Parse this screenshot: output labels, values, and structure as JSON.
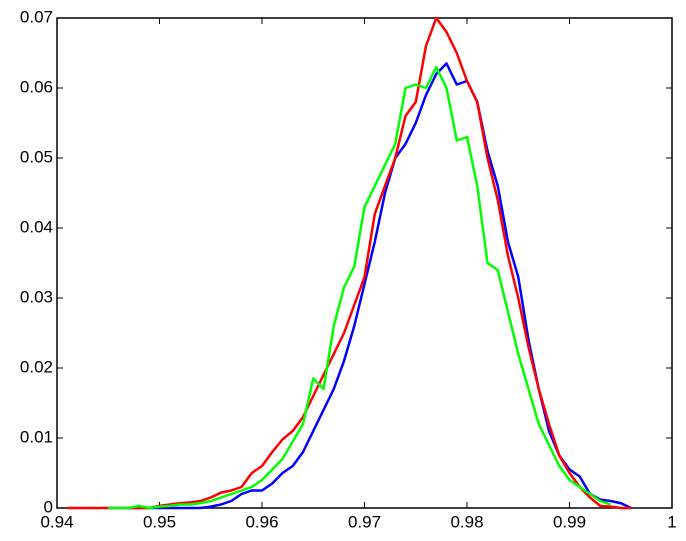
{
  "chart_data": {
    "type": "line",
    "x": [
      0.941,
      0.942,
      0.943,
      0.944,
      0.945,
      0.946,
      0.947,
      0.948,
      0.949,
      0.95,
      0.951,
      0.952,
      0.953,
      0.954,
      0.955,
      0.956,
      0.957,
      0.958,
      0.959,
      0.96,
      0.961,
      0.962,
      0.963,
      0.964,
      0.965,
      0.966,
      0.967,
      0.968,
      0.969,
      0.97,
      0.971,
      0.972,
      0.973,
      0.974,
      0.975,
      0.976,
      0.977,
      0.978,
      0.979,
      0.98,
      0.981,
      0.982,
      0.983,
      0.984,
      0.985,
      0.986,
      0.987,
      0.988,
      0.989,
      0.99,
      0.991,
      0.992,
      0.993,
      0.994,
      0.995,
      0.996
    ],
    "series": [
      {
        "color": "#0000ff",
        "values": [
          null,
          null,
          null,
          null,
          0,
          0,
          0,
          0,
          0,
          0,
          0,
          0,
          0,
          0,
          0.0002,
          0.0005,
          0.001,
          0.002,
          0.0025,
          0.0025,
          0.0035,
          0.005,
          0.006,
          0.008,
          0.011,
          0.014,
          0.017,
          0.021,
          0.026,
          0.032,
          0.038,
          0.045,
          0.05,
          0.052,
          0.055,
          0.059,
          0.062,
          0.0635,
          0.0605,
          0.061,
          0.058,
          0.051,
          0.046,
          0.038,
          0.033,
          0.024,
          0.017,
          0.011,
          0.0075,
          0.0055,
          0.0045,
          0.002,
          0.0012,
          0.001,
          0.0007,
          0
        ]
      },
      {
        "color": "#ff0000",
        "values": [
          0,
          0,
          0,
          0,
          0,
          0,
          0,
          0,
          0,
          0.0003,
          0.0005,
          0.0007,
          0.0008,
          0.001,
          0.0015,
          0.0022,
          0.0025,
          0.003,
          0.005,
          0.006,
          0.008,
          0.0098,
          0.011,
          0.013,
          0.016,
          0.019,
          0.022,
          0.025,
          0.029,
          0.033,
          0.042,
          0.046,
          0.05,
          0.056,
          0.058,
          0.066,
          0.07,
          0.068,
          0.065,
          0.061,
          0.058,
          0.05,
          0.044,
          0.036,
          0.03,
          0.023,
          0.017,
          0.012,
          0.0075,
          0.005,
          0.003,
          0.0015,
          0.0003,
          0.0002,
          0,
          0
        ]
      },
      {
        "color": "#00ff00",
        "values": [
          null,
          null,
          null,
          null,
          0,
          0,
          0,
          0.0003,
          0,
          0.0002,
          0.0003,
          0.0005,
          0.0005,
          0.0007,
          0.001,
          0.0015,
          0.002,
          0.0025,
          0.003,
          0.004,
          0.0055,
          0.007,
          0.0095,
          0.012,
          0.0185,
          0.017,
          0.026,
          0.0315,
          0.0345,
          0.043,
          0.046,
          0.049,
          0.052,
          0.06,
          0.0605,
          0.06,
          0.063,
          0.06,
          0.0525,
          0.053,
          0.046,
          0.035,
          0.034,
          0.028,
          0.022,
          0.017,
          0.012,
          0.009,
          0.006,
          0.004,
          0.003,
          0.002,
          0.001,
          0.0005,
          null,
          null
        ]
      }
    ],
    "xlim": [
      0.94,
      1
    ],
    "xticks": [
      0.94,
      0.95,
      0.96,
      0.97,
      0.98,
      0.99,
      1
    ],
    "ylim": [
      0,
      0.07
    ],
    "yticks": [
      0,
      0.01,
      0.02,
      0.03,
      0.04,
      0.05,
      0.06,
      0.07
    ],
    "grid": false
  }
}
